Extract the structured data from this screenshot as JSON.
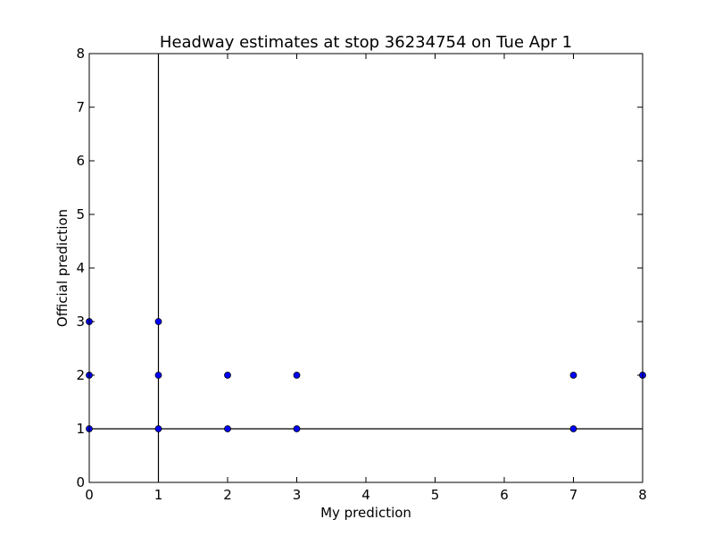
{
  "chart_data": {
    "type": "scatter",
    "title": "Headway estimates at stop 36234754 on Tue Apr 1",
    "xlabel": "My prediction",
    "ylabel": "Official prediction",
    "xlim": [
      0,
      8
    ],
    "ylim": [
      0,
      8
    ],
    "xticks": [
      "0",
      "1",
      "2",
      "3",
      "4",
      "5",
      "6",
      "7",
      "8"
    ],
    "yticks": [
      "0",
      "1",
      "2",
      "3",
      "4",
      "5",
      "6",
      "7",
      "8"
    ],
    "grid": false,
    "reference_lines": {
      "vertical_x": 1,
      "horizontal_y": 1
    },
    "points": [
      {
        "x": 0,
        "y": 3
      },
      {
        "x": 0,
        "y": 2
      },
      {
        "x": 0,
        "y": 1
      },
      {
        "x": 1,
        "y": 3
      },
      {
        "x": 1,
        "y": 2
      },
      {
        "x": 1,
        "y": 1
      },
      {
        "x": 2,
        "y": 2
      },
      {
        "x": 2,
        "y": 1
      },
      {
        "x": 3,
        "y": 2
      },
      {
        "x": 3,
        "y": 1
      },
      {
        "x": 7,
        "y": 2
      },
      {
        "x": 7,
        "y": 1
      },
      {
        "x": 8,
        "y": 2
      }
    ],
    "colors": {
      "marker_fill": "#0000ff",
      "marker_edge": "#000000",
      "axes": "#000000"
    }
  }
}
